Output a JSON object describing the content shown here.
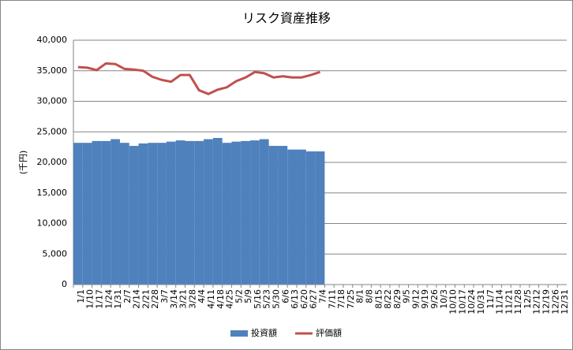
{
  "chart_data": {
    "type": "bar_line",
    "title": "リスク資産推移",
    "y_label": "(千円)",
    "categories": [
      "1/1",
      "1/10",
      "1/17",
      "1/24",
      "1/31",
      "2/7",
      "2/14",
      "2/21",
      "2/28",
      "3/7",
      "3/14",
      "3/21",
      "3/28",
      "4/4",
      "4/11",
      "4/18",
      "4/25",
      "5/2",
      "5/9",
      "5/16",
      "5/23",
      "5/30",
      "6/6",
      "6/13",
      "6/20",
      "6/27",
      "7/4",
      "7/11",
      "7/18",
      "7/25",
      "8/1",
      "8/8",
      "8/15",
      "8/22",
      "8/29",
      "9/5",
      "9/12",
      "9/19",
      "9/26",
      "10/3",
      "10/10",
      "10/17",
      "10/24",
      "10/31",
      "11/7",
      "11/14",
      "11/21",
      "11/28",
      "12/5",
      "12/12",
      "12/19",
      "12/26",
      "12/31"
    ],
    "series": [
      {
        "name": "投資額",
        "kind": "bar",
        "color": "#4f81bd",
        "values": [
          23200,
          23200,
          23500,
          23500,
          23800,
          23200,
          22700,
          23100,
          23200,
          23200,
          23400,
          23600,
          23500,
          23500,
          23800,
          24000,
          23200,
          23400,
          23500,
          23600,
          23800,
          22700,
          22700,
          22100,
          22100,
          21800,
          21800,
          null,
          null,
          null,
          null,
          null,
          null,
          null,
          null,
          null,
          null,
          null,
          null,
          null,
          null,
          null,
          null,
          null,
          null,
          null,
          null,
          null,
          null,
          null,
          null,
          null,
          null
        ]
      },
      {
        "name": "評価額",
        "kind": "line",
        "color": "#c0504d",
        "values": [
          35600,
          35500,
          35100,
          36200,
          36100,
          35300,
          35200,
          35000,
          34000,
          33500,
          33200,
          34300,
          34300,
          31800,
          31200,
          31900,
          32300,
          33300,
          33900,
          34800,
          34600,
          33900,
          34100,
          33900,
          33900,
          34300,
          34800,
          null,
          null,
          null,
          null,
          null,
          null,
          null,
          null,
          null,
          null,
          null,
          null,
          null,
          null,
          null,
          null,
          null,
          null,
          null,
          null,
          null,
          null,
          null,
          null,
          null,
          null
        ]
      }
    ],
    "ylim": [
      0,
      40000
    ],
    "yticks": [
      0,
      {
        "value": 5000,
        "label": "5,000"
      },
      {
        "value": 10000,
        "label": "10,000"
      },
      {
        "value": 15000,
        "label": "15,000"
      },
      {
        "value": 20000,
        "label": "20,000"
      },
      {
        "value": 25000,
        "label": "25,000"
      },
      {
        "value": 30000,
        "label": "30,000"
      },
      {
        "value": 35000,
        "label": "35,000"
      },
      {
        "value": 40000,
        "label": "40,000"
      }
    ],
    "grid": true,
    "legend": "bottom"
  }
}
